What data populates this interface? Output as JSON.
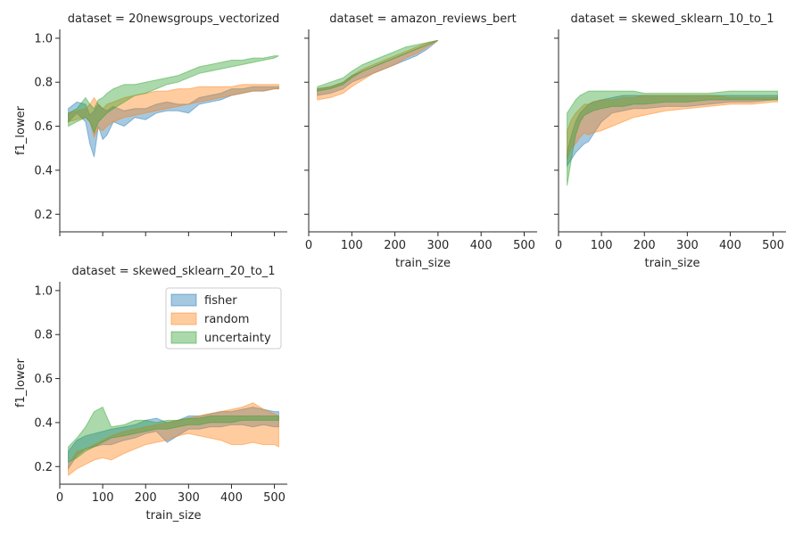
{
  "chart_data": {
    "type": "area",
    "description_metric": "f1_lower band per train_size",
    "xlabel": "train_size",
    "ylabel": "f1_lower",
    "xlim": [
      0,
      530
    ],
    "ylim": [
      0.12,
      1.04
    ],
    "x_ticks": [
      0,
      100,
      200,
      300,
      400,
      500
    ],
    "y_ticks": [
      0.2,
      0.4,
      0.6,
      0.8,
      1.0
    ],
    "x_tick_labels": [
      "0",
      "100",
      "200",
      "300",
      "400",
      "500"
    ],
    "y_tick_labels": [
      "0.2",
      "0.4",
      "0.6",
      "0.8",
      "1.0"
    ],
    "series_colors": {
      "fisher": "#1f77b4",
      "random": "#ff7f0e",
      "uncertainty": "#2ca02c"
    },
    "legend": {
      "placement": "top-right of panel 4",
      "entries": [
        "fisher",
        "random",
        "uncertainty"
      ]
    },
    "panels": [
      {
        "title": "dataset = 20newsgroups_vectorized",
        "series": [
          {
            "name": "fisher",
            "x": [
              20,
              40,
              60,
              70,
              80,
              90,
              100,
              110,
              125,
              150,
              175,
              200,
              225,
              250,
              275,
              300,
              325,
              350,
              375,
              400,
              425,
              450,
              475,
              500,
              510
            ],
            "lower": [
              0.62,
              0.66,
              0.62,
              0.52,
              0.46,
              0.6,
              0.54,
              0.56,
              0.62,
              0.6,
              0.64,
              0.63,
              0.66,
              0.67,
              0.67,
              0.66,
              0.7,
              0.71,
              0.72,
              0.74,
              0.75,
              0.76,
              0.76,
              0.77,
              0.77
            ],
            "upper": [
              0.68,
              0.71,
              0.7,
              0.65,
              0.67,
              0.7,
              0.68,
              0.67,
              0.69,
              0.67,
              0.68,
              0.68,
              0.7,
              0.71,
              0.7,
              0.7,
              0.73,
              0.74,
              0.75,
              0.77,
              0.77,
              0.78,
              0.78,
              0.78,
              0.78
            ]
          },
          {
            "name": "random",
            "x": [
              20,
              40,
              60,
              70,
              80,
              90,
              100,
              110,
              125,
              150,
              175,
              200,
              225,
              250,
              275,
              300,
              325,
              350,
              375,
              400,
              425,
              450,
              475,
              500,
              510
            ],
            "lower": [
              0.62,
              0.63,
              0.64,
              0.62,
              0.55,
              0.59,
              0.58,
              0.6,
              0.62,
              0.64,
              0.65,
              0.66,
              0.67,
              0.68,
              0.69,
              0.7,
              0.71,
              0.72,
              0.73,
              0.74,
              0.75,
              0.76,
              0.76,
              0.77,
              0.77
            ],
            "upper": [
              0.66,
              0.67,
              0.68,
              0.7,
              0.73,
              0.7,
              0.68,
              0.7,
              0.71,
              0.73,
              0.74,
              0.75,
              0.76,
              0.76,
              0.77,
              0.77,
              0.78,
              0.78,
              0.78,
              0.78,
              0.79,
              0.79,
              0.79,
              0.79,
              0.79
            ]
          },
          {
            "name": "uncertainty",
            "x": [
              20,
              40,
              60,
              70,
              80,
              90,
              100,
              110,
              125,
              150,
              175,
              200,
              225,
              250,
              275,
              300,
              325,
              350,
              375,
              400,
              425,
              450,
              475,
              500,
              510
            ],
            "lower": [
              0.6,
              0.62,
              0.64,
              0.62,
              0.57,
              0.62,
              0.64,
              0.66,
              0.68,
              0.71,
              0.74,
              0.75,
              0.77,
              0.79,
              0.8,
              0.82,
              0.84,
              0.85,
              0.86,
              0.87,
              0.88,
              0.89,
              0.9,
              0.91,
              0.92
            ],
            "upper": [
              0.66,
              0.68,
              0.73,
              0.7,
              0.68,
              0.72,
              0.73,
              0.75,
              0.77,
              0.79,
              0.79,
              0.8,
              0.81,
              0.82,
              0.83,
              0.85,
              0.87,
              0.88,
              0.89,
              0.9,
              0.9,
              0.91,
              0.91,
              0.92,
              0.92
            ]
          }
        ]
      },
      {
        "title": "dataset = amazon_reviews_bert",
        "series": [
          {
            "name": "fisher",
            "x": [
              20,
              50,
              80,
              100,
              125,
              150,
              175,
              200,
              225,
              250,
              275,
              300
            ],
            "lower": [
              0.74,
              0.75,
              0.77,
              0.8,
              0.82,
              0.84,
              0.86,
              0.88,
              0.9,
              0.92,
              0.95,
              0.99
            ],
            "upper": [
              0.77,
              0.78,
              0.8,
              0.83,
              0.85,
              0.87,
              0.89,
              0.91,
              0.93,
              0.95,
              0.97,
              0.99
            ]
          },
          {
            "name": "random",
            "x": [
              20,
              50,
              80,
              100,
              125,
              150,
              175,
              200,
              225,
              250,
              275,
              300
            ],
            "lower": [
              0.72,
              0.73,
              0.75,
              0.78,
              0.81,
              0.84,
              0.86,
              0.88,
              0.91,
              0.93,
              0.96,
              0.99
            ],
            "upper": [
              0.77,
              0.78,
              0.8,
              0.83,
              0.86,
              0.88,
              0.9,
              0.92,
              0.94,
              0.96,
              0.98,
              0.99
            ]
          },
          {
            "name": "uncertainty",
            "x": [
              20,
              50,
              80,
              100,
              125,
              150,
              175,
              200,
              225,
              250,
              275,
              300
            ],
            "lower": [
              0.76,
              0.77,
              0.79,
              0.82,
              0.85,
              0.87,
              0.89,
              0.91,
              0.93,
              0.95,
              0.97,
              0.99
            ],
            "upper": [
              0.78,
              0.8,
              0.82,
              0.85,
              0.88,
              0.9,
              0.92,
              0.94,
              0.96,
              0.97,
              0.98,
              0.99
            ]
          }
        ]
      },
      {
        "title": "dataset = skewed_sklearn_10_to_1",
        "series": [
          {
            "name": "fisher",
            "x": [
              20,
              30,
              40,
              50,
              60,
              70,
              80,
              100,
              125,
              150,
              175,
              200,
              250,
              300,
              350,
              400,
              450,
              500,
              510
            ],
            "lower": [
              0.42,
              0.45,
              0.48,
              0.5,
              0.52,
              0.53,
              0.56,
              0.62,
              0.66,
              0.67,
              0.68,
              0.68,
              0.69,
              0.69,
              0.7,
              0.71,
              0.71,
              0.72,
              0.72
            ],
            "upper": [
              0.48,
              0.56,
              0.62,
              0.66,
              0.68,
              0.7,
              0.71,
              0.72,
              0.73,
              0.74,
              0.74,
              0.74,
              0.74,
              0.74,
              0.74,
              0.74,
              0.74,
              0.74,
              0.74
            ]
          },
          {
            "name": "random",
            "x": [
              20,
              30,
              40,
              50,
              60,
              70,
              80,
              100,
              125,
              150,
              175,
              200,
              250,
              300,
              350,
              400,
              450,
              500,
              510
            ],
            "lower": [
              0.45,
              0.5,
              0.52,
              0.55,
              0.57,
              0.56,
              0.57,
              0.58,
              0.6,
              0.62,
              0.64,
              0.65,
              0.67,
              0.68,
              0.69,
              0.7,
              0.7,
              0.71,
              0.71
            ],
            "upper": [
              0.58,
              0.63,
              0.66,
              0.68,
              0.7,
              0.7,
              0.71,
              0.72,
              0.72,
              0.73,
              0.73,
              0.74,
              0.74,
              0.74,
              0.74,
              0.73,
              0.73,
              0.73,
              0.73
            ]
          },
          {
            "name": "uncertainty",
            "x": [
              20,
              30,
              40,
              50,
              60,
              70,
              80,
              100,
              125,
              150,
              175,
              200,
              250,
              300,
              350,
              400,
              450,
              500,
              510
            ],
            "lower": [
              0.33,
              0.45,
              0.56,
              0.62,
              0.65,
              0.66,
              0.67,
              0.68,
              0.69,
              0.69,
              0.7,
              0.7,
              0.71,
              0.71,
              0.72,
              0.72,
              0.72,
              0.72,
              0.72
            ],
            "upper": [
              0.66,
              0.69,
              0.72,
              0.74,
              0.75,
              0.76,
              0.76,
              0.76,
              0.76,
              0.76,
              0.76,
              0.75,
              0.75,
              0.75,
              0.75,
              0.76,
              0.76,
              0.76,
              0.76
            ]
          }
        ]
      },
      {
        "title": "dataset = skewed_sklearn_20_to_1",
        "series": [
          {
            "name": "fisher",
            "x": [
              20,
              40,
              60,
              80,
              100,
              120,
              150,
              175,
              200,
              225,
              250,
              275,
              300,
              325,
              350,
              375,
              400,
              425,
              450,
              475,
              500,
              510
            ],
            "lower": [
              0.19,
              0.25,
              0.28,
              0.29,
              0.3,
              0.3,
              0.32,
              0.33,
              0.35,
              0.36,
              0.31,
              0.34,
              0.37,
              0.37,
              0.38,
              0.38,
              0.39,
              0.39,
              0.38,
              0.39,
              0.38,
              0.38
            ],
            "upper": [
              0.27,
              0.32,
              0.34,
              0.35,
              0.36,
              0.37,
              0.38,
              0.39,
              0.41,
              0.42,
              0.4,
              0.41,
              0.43,
              0.43,
              0.44,
              0.45,
              0.45,
              0.46,
              0.47,
              0.46,
              0.45,
              0.45
            ]
          },
          {
            "name": "random",
            "x": [
              20,
              40,
              60,
              80,
              100,
              120,
              150,
              175,
              200,
              225,
              250,
              275,
              300,
              325,
              350,
              375,
              400,
              425,
              450,
              475,
              500,
              510
            ],
            "lower": [
              0.16,
              0.19,
              0.21,
              0.23,
              0.24,
              0.23,
              0.26,
              0.28,
              0.3,
              0.31,
              0.32,
              0.34,
              0.35,
              0.34,
              0.33,
              0.32,
              0.3,
              0.3,
              0.31,
              0.3,
              0.3,
              0.29
            ],
            "upper": [
              0.21,
              0.27,
              0.28,
              0.3,
              0.32,
              0.34,
              0.36,
              0.37,
              0.38,
              0.39,
              0.4,
              0.41,
              0.42,
              0.43,
              0.44,
              0.45,
              0.46,
              0.47,
              0.49,
              0.46,
              0.44,
              0.43
            ]
          },
          {
            "name": "uncertainty",
            "x": [
              20,
              40,
              60,
              80,
              100,
              120,
              150,
              175,
              200,
              225,
              250,
              275,
              300,
              325,
              350,
              375,
              400,
              425,
              450,
              475,
              500,
              510
            ],
            "lower": [
              0.22,
              0.24,
              0.27,
              0.29,
              0.31,
              0.33,
              0.34,
              0.35,
              0.36,
              0.37,
              0.37,
              0.38,
              0.39,
              0.39,
              0.4,
              0.4,
              0.4,
              0.41,
              0.41,
              0.41,
              0.41,
              0.41
            ],
            "upper": [
              0.29,
              0.33,
              0.38,
              0.45,
              0.47,
              0.38,
              0.39,
              0.41,
              0.41,
              0.4,
              0.41,
              0.41,
              0.42,
              0.42,
              0.43,
              0.43,
              0.43,
              0.43,
              0.43,
              0.43,
              0.43,
              0.43
            ]
          }
        ]
      }
    ]
  }
}
